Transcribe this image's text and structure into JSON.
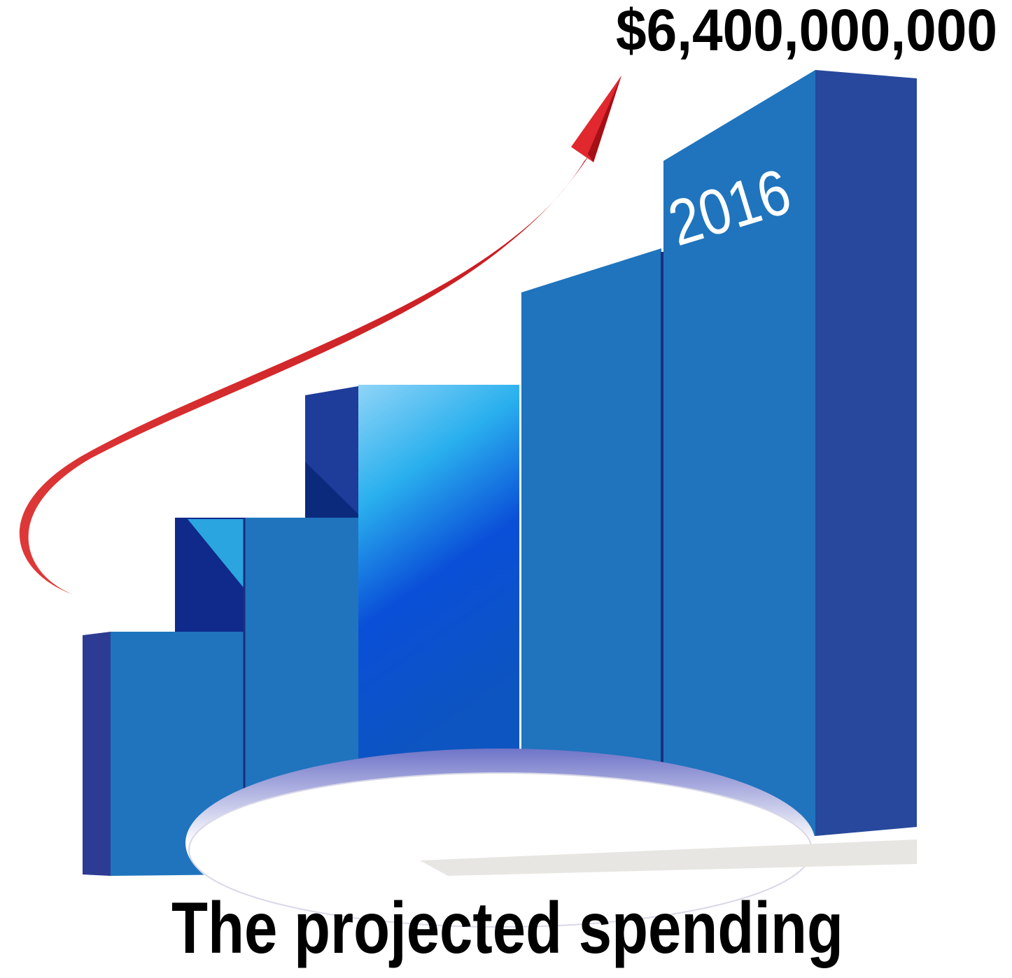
{
  "header": {
    "amount": "$6,400,000,000"
  },
  "bar_label": "2016",
  "caption": "The projected spending"
}
